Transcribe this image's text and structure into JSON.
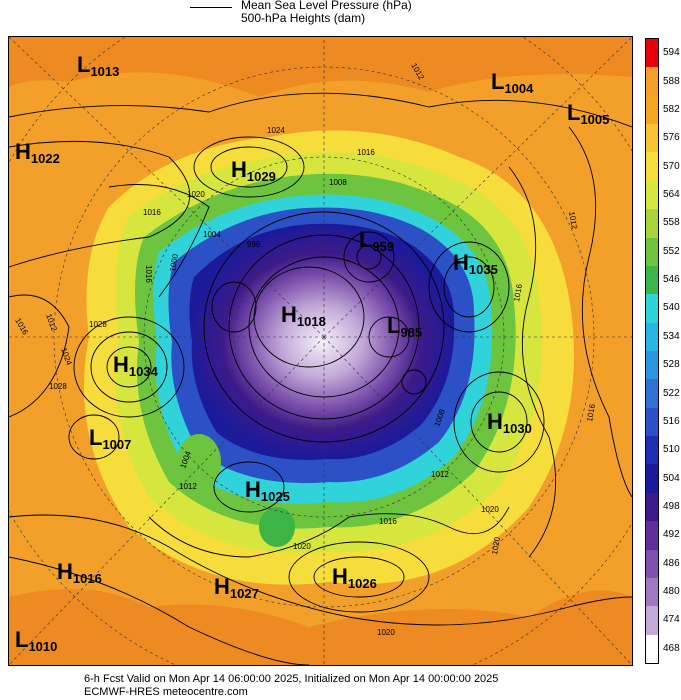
{
  "header": {
    "legend_line_1": "Mean Sea Level Pressure (hPa)",
    "legend_line_2": "500-hPa Heights (dam)"
  },
  "colorbar": {
    "levels": [
      "594",
      "588",
      "582",
      "576",
      "570",
      "564",
      "558",
      "552",
      "546",
      "540",
      "534",
      "528",
      "522",
      "516",
      "510",
      "504",
      "498",
      "492",
      "486",
      "480",
      "474",
      "468"
    ],
    "colors": [
      "#e8000b",
      "#f2a02a",
      "#f5a623",
      "#f8c435",
      "#f7dd3c",
      "#d7e63f",
      "#a6d63b",
      "#6cc43f",
      "#3db446",
      "#2fd3d9",
      "#29b6e6",
      "#2a96e0",
      "#2f73d2",
      "#2c50c5",
      "#1f2fb4",
      "#1b1a9a",
      "#3d1a8a",
      "#5f2f9a",
      "#7f52ad",
      "#9f7ac2",
      "#c3aad8",
      "#ffffff"
    ]
  },
  "pressure_centers": [
    {
      "type": "L",
      "value": "1013"
    },
    {
      "type": "L",
      "value": "1004"
    },
    {
      "type": "L",
      "value": "1005"
    },
    {
      "type": "H",
      "value": "1022"
    },
    {
      "type": "H",
      "value": "1029"
    },
    {
      "type": "L",
      "value": "959"
    },
    {
      "type": "H",
      "value": "1035"
    },
    {
      "type": "H",
      "value": "1018"
    },
    {
      "type": "L",
      "value": "985"
    },
    {
      "type": "H",
      "value": "1034"
    },
    {
      "type": "L",
      "value": "1007"
    },
    {
      "type": "H",
      "value": "1030"
    },
    {
      "type": "H",
      "value": "1025"
    },
    {
      "type": "H",
      "value": "1016"
    },
    {
      "type": "H",
      "value": "1027"
    },
    {
      "type": "H",
      "value": "1026"
    },
    {
      "type": "L",
      "value": "1010"
    }
  ],
  "isobar_labels": [
    "1012",
    "1024",
    "1016",
    "1020",
    "1016",
    "1004",
    "996",
    "1008",
    "1000",
    "1016",
    "1012",
    "1028",
    "1024",
    "1016",
    "1004",
    "1012",
    "1008",
    "1016",
    "1020",
    "1020",
    "1012",
    "1016",
    "1020",
    "1016",
    "1012",
    "1020",
    "1028"
  ],
  "footer": {
    "line_1": "6-h Fcst Valid on Mon Apr 14 06:00:00 2025, Initialized on Mon Apr 14 00:00:00 2025",
    "line_2": "ECMWF-HRES   meteocentre.com"
  }
}
